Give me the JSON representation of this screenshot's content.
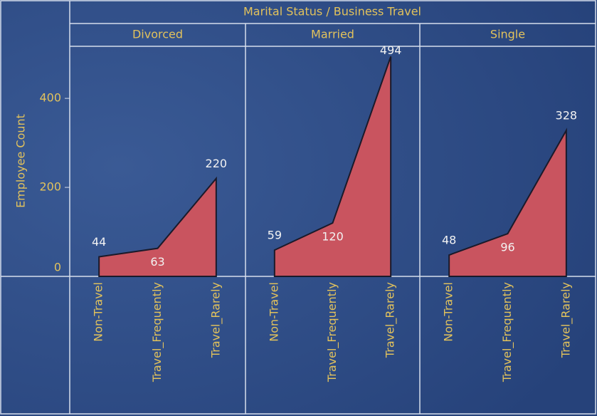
{
  "chart_data": {
    "type": "area",
    "title": "Marital Status / Business Travel",
    "y_label": "Employee Count",
    "ylim": [
      0,
      517
    ],
    "yticks": [
      0,
      200,
      400
    ],
    "color": "#c9545f",
    "panels": [
      {
        "name": "Divorced",
        "categories": [
          "Non-Travel",
          "Travel_Frequently",
          "Travel_Rarely"
        ],
        "values": [
          44,
          63,
          220
        ]
      },
      {
        "name": "Married",
        "categories": [
          "Non-Travel",
          "Travel_Frequently",
          "Travel_Rarely"
        ],
        "values": [
          59,
          120,
          494
        ]
      },
      {
        "name": "Single",
        "categories": [
          "Non-Travel",
          "Travel_Frequently",
          "Travel_Rarely"
        ],
        "values": [
          48,
          96,
          328
        ]
      }
    ]
  }
}
